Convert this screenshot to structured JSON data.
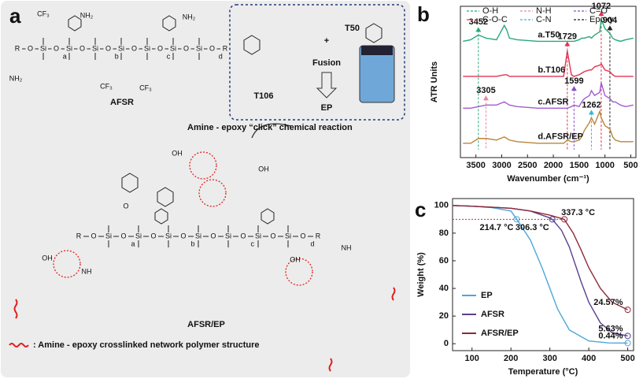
{
  "panel_a": {
    "label": "a",
    "afsr_name": "AFSR",
    "t106_name": "T106",
    "plus": "+",
    "fusion": "Fusion",
    "t50_name": "T50",
    "ep_name": "EP",
    "reaction": "Amine - epoxy “click” chemical reaction",
    "product_name": "AFSR/EP",
    "legend_text": ": Amine - epoxy crosslinked network polymer structure",
    "chain": [
      "R",
      "O",
      "Si",
      "O",
      "Si",
      "O",
      "Si",
      "O",
      "Si",
      "O",
      "Si",
      "O",
      "Si",
      "O",
      "Si",
      "O",
      "R"
    ],
    "subscripts": [
      "a",
      "b",
      "c",
      "d"
    ],
    "side_groups": [
      "CF₃",
      "NH₂",
      "CF₃",
      "NH₂",
      "CF₃",
      "NH₂",
      "OH",
      "OH",
      "OH",
      "NH",
      "NH",
      "O",
      "OH"
    ]
  },
  "chart_data": [
    {
      "type": "line",
      "panel_label": "b",
      "x_label": "Wavenumber (cm⁻¹)",
      "y_label": "ATR Units",
      "xlim": [
        3800,
        400
      ],
      "xticks": [
        3500,
        3000,
        2500,
        2000,
        1500,
        1000,
        500
      ],
      "ylim": [
        5,
        100
      ],
      "x": [
        3750,
        3600,
        3452,
        3300,
        3100,
        2950,
        2900,
        2850,
        2700,
        2300,
        2000,
        1800,
        1729,
        1650,
        1600,
        1500,
        1450,
        1400,
        1300,
        1262,
        1200,
        1100,
        1072,
        1000,
        904,
        850,
        800,
        700,
        600,
        450
      ],
      "series": [
        {
          "name": "a.T50",
          "color": "#2aa87a",
          "values": [
            78,
            79,
            82,
            80,
            79,
            88,
            85,
            80,
            79,
            78,
            78,
            78,
            78,
            78,
            78,
            79,
            80,
            80,
            81,
            80,
            82,
            84,
            92,
            86,
            83,
            80,
            79,
            78,
            79,
            80
          ]
        },
        {
          "name": "b.T106",
          "color": "#e0344f",
          "values": [
            56,
            56,
            56,
            56,
            56,
            57,
            57,
            56,
            56,
            56,
            56,
            56,
            72,
            57,
            56,
            57,
            58,
            59,
            60,
            60,
            62,
            63,
            64,
            60,
            59,
            57,
            56,
            56,
            56,
            56
          ]
        },
        {
          "name": "c.AFSR",
          "color": "#a25ccf",
          "values": [
            36,
            36,
            37,
            38,
            38,
            40,
            39,
            38,
            37,
            36,
            36,
            36,
            36,
            37,
            38,
            37,
            40,
            42,
            44,
            47,
            44,
            46,
            52,
            44,
            42,
            40,
            40,
            38,
            37,
            38
          ]
        },
        {
          "name": "d.AFSR/EP",
          "color": "#b8863b",
          "values": [
            14,
            14,
            17,
            17,
            16,
            18,
            17,
            16,
            15,
            14,
            14,
            14,
            16,
            15,
            15,
            16,
            18,
            22,
            27,
            30,
            26,
            34,
            30,
            25,
            23,
            18,
            16,
            15,
            15,
            15
          ]
        }
      ],
      "legend": [
        {
          "name": "O-H",
          "color": "#2aa87a"
        },
        {
          "name": "N-H",
          "color": "#e58aa0"
        },
        {
          "name": "C=O",
          "color": "#8a4fc0"
        },
        {
          "name": "C-O-C",
          "color": "#e0344f"
        },
        {
          "name": "C-N",
          "color": "#35b8d8"
        },
        {
          "name": "Epoxy",
          "color": "#222222"
        }
      ],
      "peaks": [
        {
          "x": 3452,
          "y": 85,
          "color": "#2aa87a"
        },
        {
          "x": 1729,
          "y": 76,
          "color": "#e0344f"
        },
        {
          "x": 1072,
          "y": 95,
          "color": "#e0344f"
        },
        {
          "x": 904,
          "y": 86,
          "color": "#222222"
        },
        {
          "x": 3305,
          "y": 42,
          "color": "#e58aa0"
        },
        {
          "x": 1599,
          "y": 48,
          "color": "#8a4fc0"
        },
        {
          "x": 1262,
          "y": 33,
          "color": "#35b8d8"
        }
      ]
    },
    {
      "type": "line",
      "panel_label": "c",
      "x_label": "Temperature (°C)",
      "y_label": "Weight (%)",
      "xlim": [
        50,
        515
      ],
      "xticks": [
        100,
        200,
        300,
        400,
        500
      ],
      "ylim": [
        -5,
        105
      ],
      "yticks": [
        0,
        20,
        40,
        60,
        80,
        100
      ],
      "legend_loc": "lower left",
      "reference_y": 90,
      "series": [
        {
          "name": "EP",
          "color": "#4da6d9",
          "x": [
            50,
            100,
            150,
            200,
            215,
            250,
            280,
            300,
            320,
            350,
            400,
            450,
            500
          ],
          "values": [
            100,
            99.5,
            98.5,
            96,
            90,
            75,
            55,
            40,
            25,
            10,
            2,
            0.6,
            0.44
          ]
        },
        {
          "name": "AFSR",
          "color": "#5a3f8f",
          "x": [
            50,
            100,
            200,
            250,
            300,
            306,
            330,
            350,
            380,
            400,
            430,
            460,
            500
          ],
          "values": [
            100,
            99.5,
            98,
            96,
            91,
            90,
            82,
            70,
            45,
            30,
            15,
            8,
            5.63
          ]
        },
        {
          "name": "AFSR/EP",
          "color": "#8c2a3a",
          "x": [
            50,
            100,
            200,
            250,
            300,
            337,
            360,
            380,
            400,
            430,
            460,
            500
          ],
          "values": [
            100,
            99.5,
            98,
            96,
            93,
            90,
            80,
            68,
            55,
            40,
            30,
            24.57
          ]
        }
      ],
      "annotations": [
        {
          "text": "214.7 °C",
          "x": 214.7,
          "y": 90,
          "color": "#4da6d9"
        },
        {
          "text": "306.3 °C",
          "x": 306.3,
          "y": 90,
          "color": "#5a3f8f"
        },
        {
          "text": "337.3 °C",
          "x": 337.3,
          "y": 90,
          "color": "#8c2a3a"
        },
        {
          "text": "24.57%",
          "x": 500,
          "y": 24.57,
          "color": "#8c2a3a"
        },
        {
          "text": "5.63%",
          "x": 500,
          "y": 5.63,
          "color": "#5a3f8f"
        },
        {
          "text": "0.44%",
          "x": 500,
          "y": 0.44,
          "color": "#4da6d9"
        }
      ]
    }
  ]
}
